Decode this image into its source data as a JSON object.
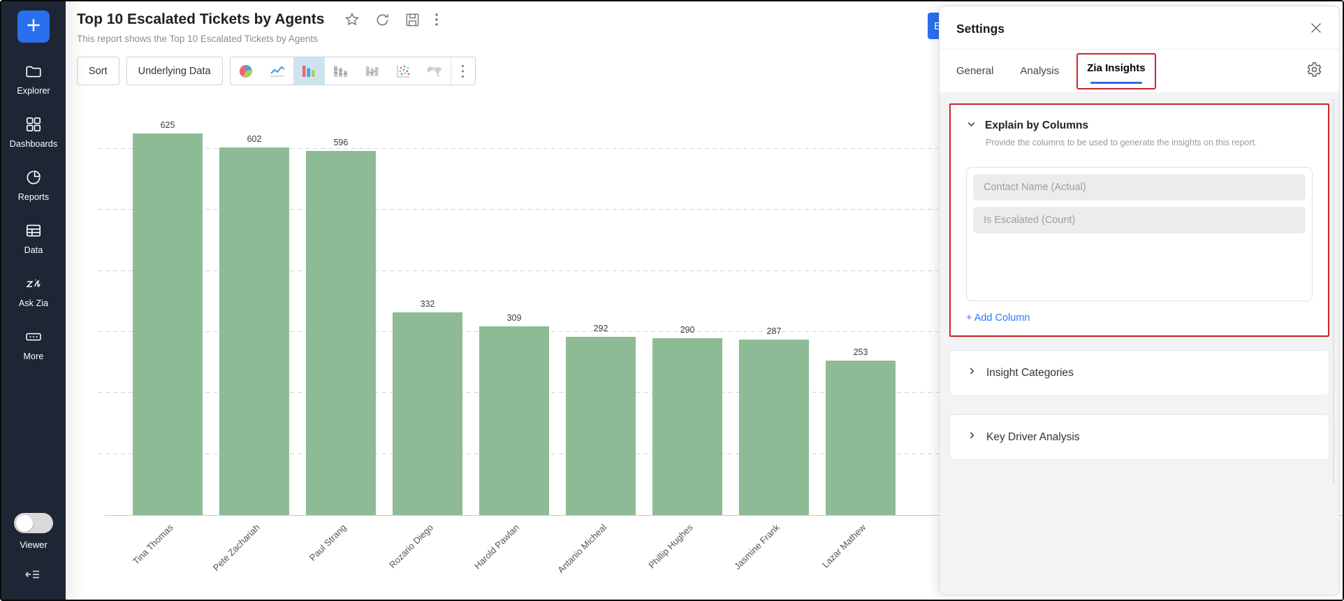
{
  "sidebar": {
    "items": [
      {
        "label": "Explorer",
        "icon": "folder-icon"
      },
      {
        "label": "Dashboards",
        "icon": "dashboards-icon"
      },
      {
        "label": "Reports",
        "icon": "reports-icon"
      },
      {
        "label": "Data",
        "icon": "data-icon"
      },
      {
        "label": "Ask Zia",
        "icon": "ask-zia-icon"
      },
      {
        "label": "More",
        "icon": "more-icon"
      }
    ],
    "viewer_label": "Viewer"
  },
  "header": {
    "title": "Top 10 Escalated Tickets by Agents",
    "subtitle": "This report shows the Top 10 Escalated Tickets by Agents"
  },
  "toolbar": {
    "sort_label": "Sort",
    "underlying_data_label": "Underlying Data"
  },
  "edit_button": {
    "visible_text": "E"
  },
  "settings": {
    "title": "Settings",
    "tabs": [
      "General",
      "Analysis",
      "Zia Insights"
    ],
    "active_tab": "Zia Insights",
    "explain": {
      "title": "Explain by Columns",
      "description": "Provide the columns to be used to generate the insights on this report.",
      "columns": [
        "Contact Name (Actual)",
        "Is Escalated (Count)"
      ],
      "add_column_label": "+ Add Column"
    },
    "insight_categories_label": "Insight Categories",
    "key_driver_label": "Key Driver Analysis"
  },
  "colors": {
    "accent_blue": "#2a6ff0",
    "bar_green": "#8dbb95",
    "highlight_red": "#c9252b",
    "link_blue": "#2979ff",
    "tab_underline_blue": "#2f6ce0",
    "sidebar_navy": "#1e2534"
  },
  "chart_data": {
    "type": "bar",
    "title": "Top 10 Escalated Tickets by Agents",
    "categories": [
      "Tina Thomas",
      "Pete Zachariah",
      "Paul Strang",
      "Rozario Diego",
      "Harold Pawlan",
      "Antanio Micheal",
      "Phillip Hughes",
      "Jasmine Frank",
      "Lazar Mathew"
    ],
    "values": [
      625,
      602,
      596,
      332,
      309,
      292,
      290,
      287,
      253
    ],
    "bar_color": "#8dbb95",
    "xlabel": "",
    "ylabel": "",
    "ylim": [
      0,
      650
    ],
    "gridline_interval": 100,
    "grid": true,
    "value_labels": true,
    "legend": false
  }
}
